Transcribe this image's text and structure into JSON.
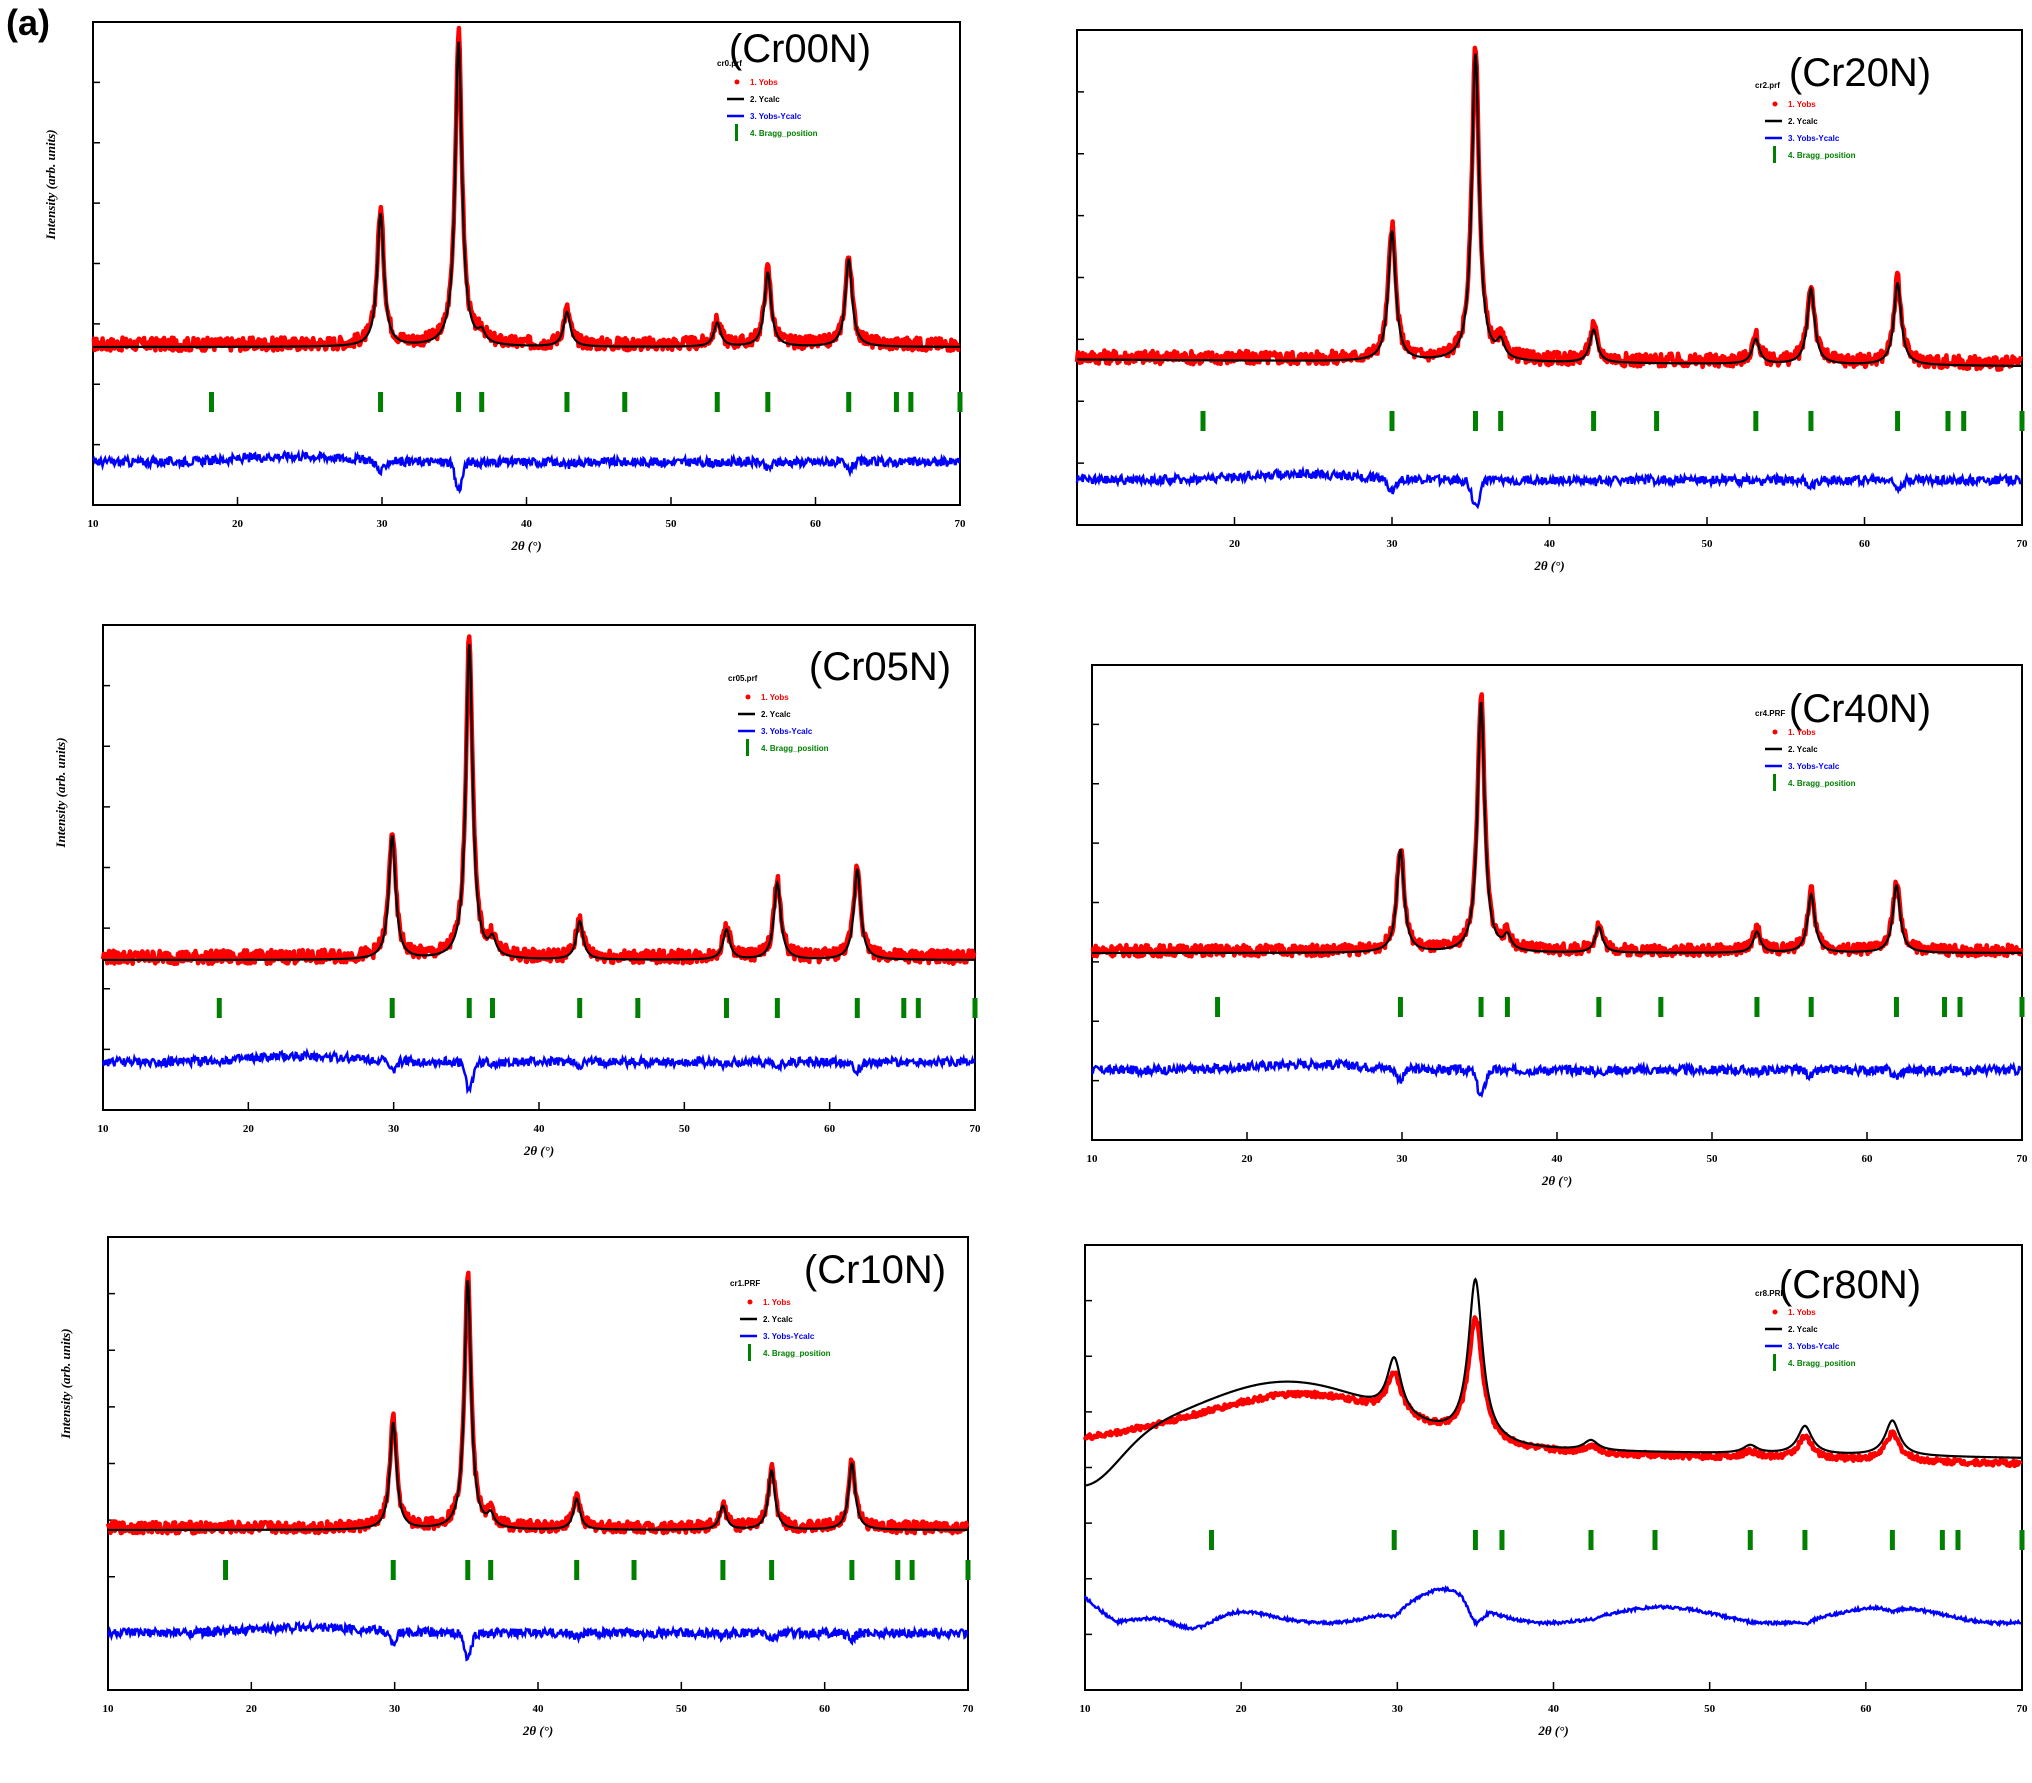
{
  "figure_label": "(a)",
  "colors": {
    "yobs": "#ff0000",
    "ycalc": "#000000",
    "diff": "#0000ff",
    "bragg": "#008000"
  },
  "chart_data": [
    {
      "type": "line",
      "sample": "(Cr00N)",
      "file": "cr0.prf",
      "xlabel": "2θ (°)",
      "ylabel": "Intensity (arb. units)",
      "xlim": [
        10,
        70
      ],
      "xticks": [
        "10",
        "20",
        "30",
        "40",
        "50",
        "60",
        "70"
      ],
      "legend": [
        "1. Yobs",
        "2. Ycalc",
        "3. Yobs-Ycalc",
        "4. Bragg_position"
      ],
      "legend_position": "top-right",
      "peaks": [
        {
          "x": 29.9,
          "h": 100
        },
        {
          "x": 35.3,
          "h": 230
        },
        {
          "x": 36.9,
          "h": 8
        },
        {
          "x": 42.8,
          "h": 26
        },
        {
          "x": 53.2,
          "h": 18
        },
        {
          "x": 56.7,
          "h": 56
        },
        {
          "x": 62.3,
          "h": 66
        }
      ],
      "bragg_positions": [
        18.2,
        29.9,
        35.3,
        36.9,
        42.8,
        46.8,
        53.2,
        56.7,
        62.3,
        65.6,
        66.6,
        70.0
      ]
    },
    {
      "type": "line",
      "sample": "(Cr20N)",
      "file": "cr2.prf",
      "xlabel": "2θ (°)",
      "ylabel": "",
      "xlim": [
        10,
        70
      ],
      "xticks": [
        "",
        "20",
        "30",
        "40",
        "50",
        "60",
        "70"
      ],
      "legend": [
        "1. Yobs",
        "2. Ycalc",
        "3. Yobs-Ycalc",
        "4. Bragg_position"
      ],
      "legend_position": "top-right",
      "peaks": [
        {
          "x": 30.0,
          "h": 95
        },
        {
          "x": 35.3,
          "h": 225
        },
        {
          "x": 36.9,
          "h": 12
        },
        {
          "x": 42.8,
          "h": 24
        },
        {
          "x": 53.1,
          "h": 18
        },
        {
          "x": 56.6,
          "h": 55
        },
        {
          "x": 62.1,
          "h": 60
        }
      ],
      "bragg_positions": [
        18.0,
        30.0,
        35.3,
        36.9,
        42.8,
        46.8,
        53.1,
        56.6,
        62.1,
        65.3,
        66.3,
        70.0
      ]
    },
    {
      "type": "line",
      "sample": "(Cr05N)",
      "file": "cr05.prf",
      "xlabel": "2θ (°)",
      "ylabel": "Intensity (arb. units)",
      "xlim": [
        10,
        70
      ],
      "xticks": [
        "10",
        "20",
        "30",
        "40",
        "50",
        "60",
        "70"
      ],
      "legend": [
        "1. Yobs",
        "2. Ycalc",
        "3. Yobs-Ycalc",
        "4. Bragg_position"
      ],
      "legend_position": "top-right",
      "peaks": [
        {
          "x": 29.9,
          "h": 90
        },
        {
          "x": 35.2,
          "h": 230
        },
        {
          "x": 36.8,
          "h": 12
        },
        {
          "x": 42.8,
          "h": 28
        },
        {
          "x": 52.9,
          "h": 22
        },
        {
          "x": 56.4,
          "h": 56
        },
        {
          "x": 61.9,
          "h": 66
        }
      ],
      "bragg_positions": [
        18.0,
        29.9,
        35.2,
        36.8,
        42.8,
        46.8,
        52.9,
        56.4,
        61.9,
        65.1,
        66.1,
        70.0
      ]
    },
    {
      "type": "line",
      "sample": "(Cr40N)",
      "file": "cr4.PRF",
      "xlabel": "2θ (°)",
      "ylabel": "",
      "xlim": [
        10,
        70
      ],
      "xticks": [
        "10",
        "20",
        "30",
        "40",
        "50",
        "60",
        "70"
      ],
      "legend": [
        "1. Yobs",
        "2. Ycalc",
        "3. Yobs-Ycalc",
        "4. Bragg_position"
      ],
      "legend_position": "top-right",
      "peaks": [
        {
          "x": 29.9,
          "h": 88
        },
        {
          "x": 35.1,
          "h": 215
        },
        {
          "x": 36.8,
          "h": 12
        },
        {
          "x": 42.7,
          "h": 22
        },
        {
          "x": 52.9,
          "h": 18
        },
        {
          "x": 56.4,
          "h": 50
        },
        {
          "x": 61.9,
          "h": 58
        }
      ],
      "bragg_positions": [
        18.1,
        29.9,
        35.1,
        36.8,
        42.7,
        46.7,
        52.9,
        56.4,
        61.9,
        65.0,
        66.0,
        70.0
      ]
    },
    {
      "type": "line",
      "sample": "(Cr10N)",
      "file": "cr1.PRF",
      "xlabel": "2θ (°)",
      "ylabel": "Intensity (arb. units)",
      "xlim": [
        10,
        70
      ],
      "xticks": [
        "10",
        "20",
        "30",
        "40",
        "50",
        "60",
        "70"
      ],
      "legend": [
        "1. Yobs",
        "2. Ycalc",
        "3. Yobs-Ycalc",
        "4. Bragg_position"
      ],
      "legend_position": "top-right",
      "peaks": [
        {
          "x": 29.9,
          "h": 90
        },
        {
          "x": 35.1,
          "h": 210
        },
        {
          "x": 36.7,
          "h": 10
        },
        {
          "x": 42.7,
          "h": 26
        },
        {
          "x": 52.9,
          "h": 20
        },
        {
          "x": 56.3,
          "h": 50
        },
        {
          "x": 61.9,
          "h": 56
        }
      ],
      "bragg_positions": [
        18.2,
        29.9,
        35.1,
        36.7,
        42.7,
        46.7,
        52.9,
        56.3,
        61.9,
        65.1,
        66.1,
        70.0
      ]
    },
    {
      "type": "line",
      "sample": "(Cr80N)",
      "file": "cr8.PRF",
      "xlabel": "2θ (°)",
      "ylabel": "",
      "xlim": [
        10,
        70
      ],
      "xticks": [
        "10",
        "20",
        "30",
        "40",
        "50",
        "60",
        "70"
      ],
      "legend": [
        "1. Yobs",
        "2. Ycalc",
        "3. Yobs-Ycalc",
        "4. Bragg_position"
      ],
      "legend_position": "top-right",
      "peaks": [
        {
          "x": 29.8,
          "h": 55
        },
        {
          "x": 35.0,
          "h": 160
        },
        {
          "x": 42.4,
          "h": 10
        },
        {
          "x": 52.6,
          "h": 8
        },
        {
          "x": 56.1,
          "h": 28
        },
        {
          "x": 61.7,
          "h": 35
        }
      ],
      "bragg_positions": [
        18.1,
        29.8,
        35.0,
        36.7,
        42.4,
        46.5,
        52.6,
        56.1,
        61.7,
        64.9,
        65.9,
        70.0
      ]
    }
  ]
}
